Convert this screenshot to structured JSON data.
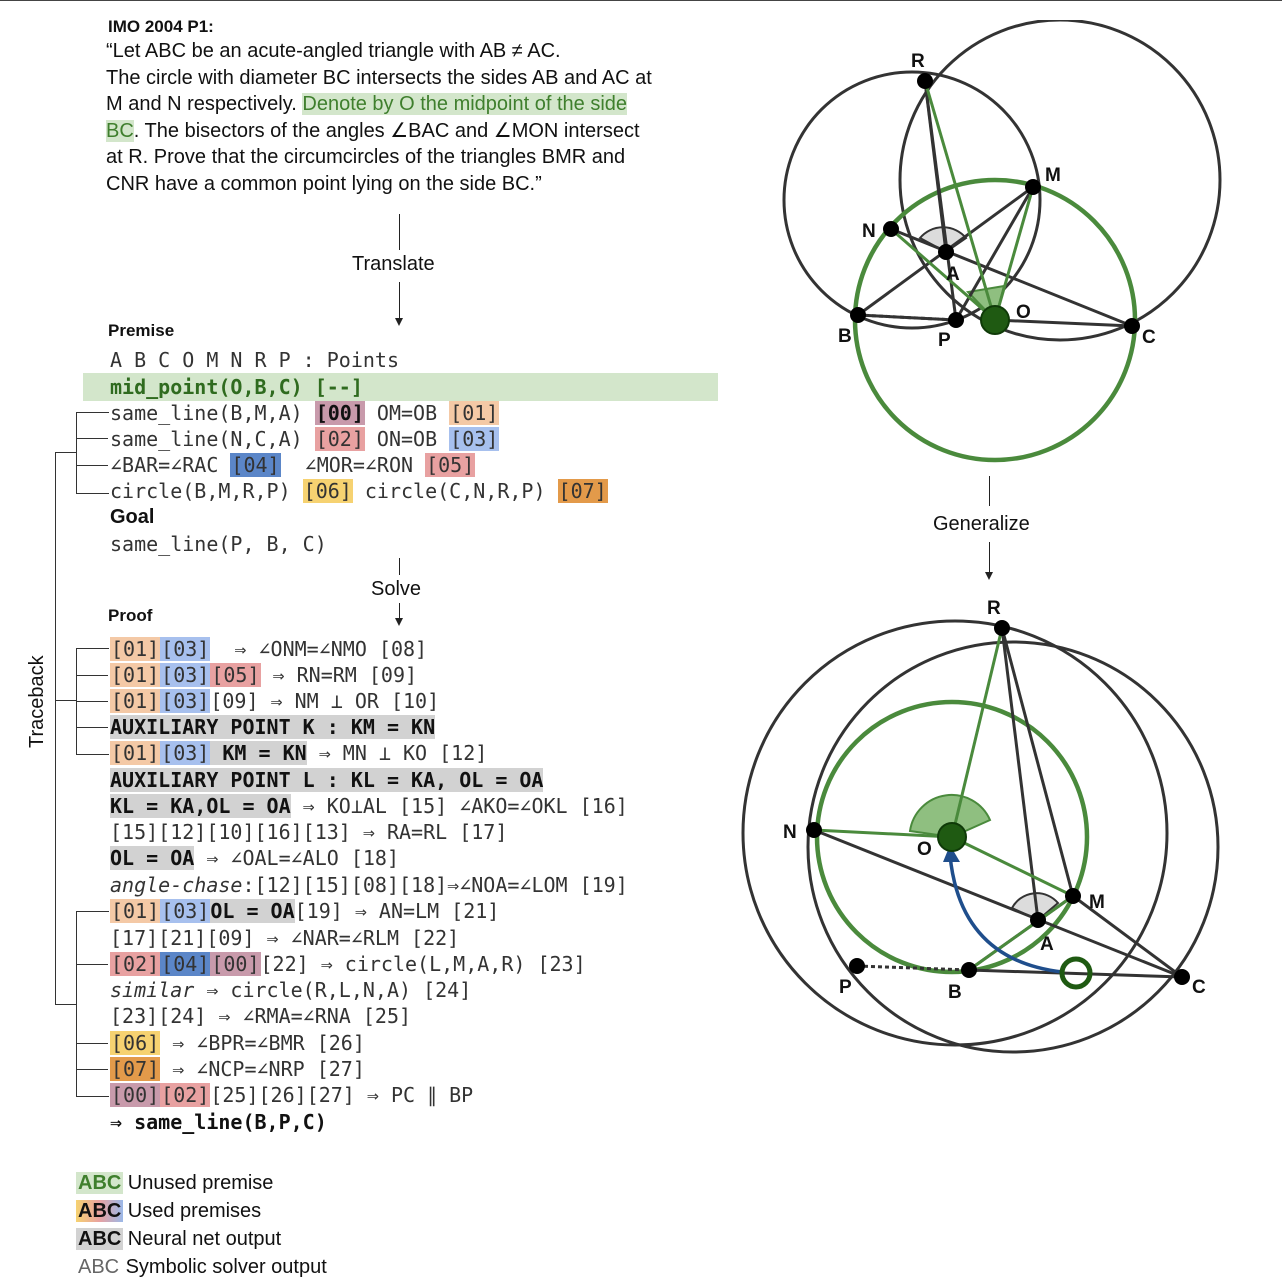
{
  "problem": {
    "title": "IMO 2004 P1:",
    "line1": "“Let ABC be an acute-angled triangle with AB ≠ AC.",
    "line2": "The circle with diameter BC intersects the sides AB and AC at",
    "line3a": "M and N respectively. ",
    "line3b": "Denote by O the midpoint of the side",
    "line4a": "BC",
    "line4b": ". The bisectors of the angles ∠BAC and ∠MON intersect",
    "line5": "at R. Prove that the circumcircles of the triangles BMR and",
    "line6": "CNR have a common point lying on the side BC.”"
  },
  "steps": {
    "translate": "Translate",
    "solve": "Solve",
    "generalize": "Generalize",
    "traceback": "Traceback"
  },
  "premise": {
    "heading": "Premise",
    "points": "A B C O M N R P : Points",
    "midpoint": "mid_point(O,B,C) [--]",
    "r1a": "same_line(B,M,A) ",
    "r1t1": "[00]",
    "r1b": " OM=OB ",
    "r1t2": "[01]",
    "r2a": "same_line(N,C,A) ",
    "r2t1": "[02]",
    "r2b": " ON=OB ",
    "r2t2": "[03]",
    "r3a": "∠BAR=∠RAC ",
    "r3t1": "[04]",
    "r3b": "  ∠MOR=∠RON ",
    "r3t2": "[05]",
    "r4a": "circle(B,M,R,P) ",
    "r4t1": "[06]",
    "r4b": " circle(C,N,R,P) ",
    "r4t2": "[07]"
  },
  "goal": {
    "heading": "Goal",
    "text": "same_line(P, B, C)"
  },
  "proof": {
    "heading": "Proof",
    "l1t1": "[01]",
    "l1t2": "[03]",
    "l1": "  ⇒ ∠ONM=∠NMO [08]",
    "l2t1": "[01]",
    "l2t2": "[03]",
    "l2t3": "[05]",
    "l2": " ⇒ RN=RM [09]",
    "l3t1": "[01]",
    "l3t2": "[03]",
    "l3": "[09] ⇒ NM ⊥ OR [10]",
    "l4": "AUXILIARY POINT K : KM = KN",
    "l5t1": "[01]",
    "l5t2": "[03]",
    "l5b": " KM = KN",
    "l5": " ⇒ MN ⊥ KO [12]",
    "l6": "AUXILIARY POINT L : KL = KA, OL = OA",
    "l7b": "KL = KA,OL = OA",
    "l7": " ⇒ KO⊥AL [15] ∠AKO=∠OKL [16]",
    "l8": "[15][12][10][16][13] ⇒ RA=RL [17]",
    "l9b": "OL = OA",
    "l9": " ⇒ ∠OAL=∠ALO [18]",
    "l10i": "angle-chase",
    "l10": ":[12][15][08][18]⇒∠NOA=∠LOM [19]",
    "l11t1": "[01]",
    "l11t2": "[03]",
    "l11b": "OL = OA",
    "l11": "[19] ⇒ AN=LM [21]",
    "l12": "[17][21][09] ⇒ ∠NAR=∠RLM [22]",
    "l13t1": "[02]",
    "l13t2": "[04]",
    "l13t3": "[00]",
    "l13": "[22] ⇒ circle(L,M,A,R) [23]",
    "l14i": "similar",
    "l14": " ⇒ circle(R,L,N,A) [24]",
    "l15": "[23][24] ⇒ ∠RMA=∠RNA [25]",
    "l16t1": "[06]",
    "l16": " ⇒ ∠BPR=∠BMR [26]",
    "l17t1": "[07]",
    "l17": " ⇒ ∠NCP=∠NRP [27]",
    "l18t1": "[00]",
    "l18t2": "[02]",
    "l18": "[25][26][27] ⇒ PC ∥ BP",
    "final": "⇒ same_line(B,P,C)"
  },
  "legend": {
    "abc": "ABC",
    "unused": "Unused premise",
    "used": "Used premises",
    "neural": "Neural net output",
    "symbolic": "Symbolic solver output"
  },
  "points_top": {
    "R": "R",
    "M": "M",
    "N": "N",
    "A": "A",
    "O": "O",
    "B": "B",
    "P": "P",
    "C": "C"
  },
  "points_bottom": {
    "R": "R",
    "N": "N",
    "O": "O",
    "M": "M",
    "A": "A",
    "P": "P",
    "B": "B",
    "C": "C"
  },
  "colors": {
    "green": "#3f7f2d",
    "dark_green": "#1f5a12",
    "blue": "#1f4e8c",
    "gray": "#333333"
  }
}
